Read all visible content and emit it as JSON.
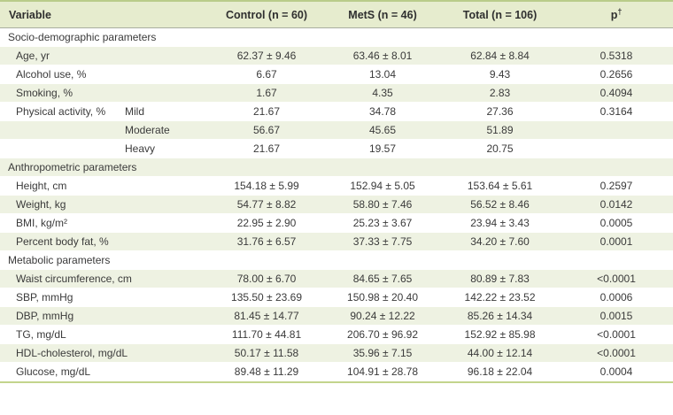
{
  "table": {
    "headers": {
      "variable": "Variable",
      "control": "Control (n = 60)",
      "mets": "MetS (n = 46)",
      "total": "Total (n = 106)",
      "p_base": "p",
      "p_sup": "†"
    },
    "colors": {
      "header_bg": "#e6ecce",
      "stripe_bg": "#eef2e2",
      "rule_green": "#b9cc8a",
      "text": "#3a3a3a"
    },
    "rows": [
      {
        "type": "section",
        "label": "Socio-demographic parameters",
        "sub": "",
        "control": "",
        "mets": "",
        "total": "",
        "p": ""
      },
      {
        "type": "data",
        "label": "Age, yr",
        "sub": "",
        "control": "62.37 ± 9.46",
        "mets": "63.46 ± 8.01",
        "total": "62.84 ± 8.84",
        "p": "0.5318"
      },
      {
        "type": "data",
        "label": "Alcohol use, %",
        "sub": "",
        "control": "6.67",
        "mets": "13.04",
        "total": "9.43",
        "p": "0.2656"
      },
      {
        "type": "data",
        "label": "Smoking, %",
        "sub": "",
        "control": "1.67",
        "mets": "4.35",
        "total": "2.83",
        "p": "0.4094"
      },
      {
        "type": "data",
        "label": "Physical activity, %",
        "sub": "Mild",
        "control": "21.67",
        "mets": "34.78",
        "total": "27.36",
        "p": "0.3164"
      },
      {
        "type": "data",
        "label": "",
        "sub": "Moderate",
        "control": "56.67",
        "mets": "45.65",
        "total": "51.89",
        "p": ""
      },
      {
        "type": "data",
        "label": "",
        "sub": "Heavy",
        "control": "21.67",
        "mets": "19.57",
        "total": "20.75",
        "p": ""
      },
      {
        "type": "section",
        "label": "Anthropometric parameters",
        "sub": "",
        "control": "",
        "mets": "",
        "total": "",
        "p": ""
      },
      {
        "type": "data",
        "label": "Height, cm",
        "sub": "",
        "control": "154.18 ± 5.99",
        "mets": "152.94 ± 5.05",
        "total": "153.64 ± 5.61",
        "p": "0.2597"
      },
      {
        "type": "data",
        "label": "Weight, kg",
        "sub": "",
        "control": "54.77 ± 8.82",
        "mets": "58.80 ± 7.46",
        "total": "56.52 ± 8.46",
        "p": "0.0142"
      },
      {
        "type": "data",
        "label": "BMI, kg/m²",
        "sub": "",
        "control": "22.95 ± 2.90",
        "mets": "25.23 ± 3.67",
        "total": "23.94 ± 3.43",
        "p": "0.0005"
      },
      {
        "type": "data",
        "label": "Percent body fat, %",
        "sub": "",
        "control": "31.76 ± 6.57",
        "mets": "37.33 ± 7.75",
        "total": "34.20 ± 7.60",
        "p": "0.0001"
      },
      {
        "type": "section",
        "label": "Metabolic parameters",
        "sub": "",
        "control": "",
        "mets": "",
        "total": "",
        "p": ""
      },
      {
        "type": "data",
        "label": "Waist circumference, cm",
        "sub": "",
        "control": "78.00 ± 6.70",
        "mets": "84.65 ± 7.65",
        "total": "80.89 ± 7.83",
        "p": "<0.0001"
      },
      {
        "type": "data",
        "label": "SBP, mmHg",
        "sub": "",
        "control": "135.50 ± 23.69",
        "mets": "150.98 ± 20.40",
        "total": "142.22 ± 23.52",
        "p": "0.0006"
      },
      {
        "type": "data",
        "label": "DBP, mmHg",
        "sub": "",
        "control": "81.45 ± 14.77",
        "mets": "90.24 ± 12.22",
        "total": "85.26 ± 14.34",
        "p": "0.0015"
      },
      {
        "type": "data",
        "label": "TG, mg/dL",
        "sub": "",
        "control": "111.70 ± 44.81",
        "mets": "206.70 ± 96.92",
        "total": "152.92 ± 85.98",
        "p": "<0.0001"
      },
      {
        "type": "data",
        "label": "HDL-cholesterol, mg/dL",
        "sub": "",
        "control": "50.17 ± 11.58",
        "mets": "35.96 ± 7.15",
        "total": "44.00 ± 12.14",
        "p": "<0.0001"
      },
      {
        "type": "data",
        "label": "Glucose, mg/dL",
        "sub": "",
        "control": "89.48 ± 11.29",
        "mets": "104.91 ± 28.78",
        "total": "96.18 ± 22.04",
        "p": "0.0004"
      }
    ]
  }
}
